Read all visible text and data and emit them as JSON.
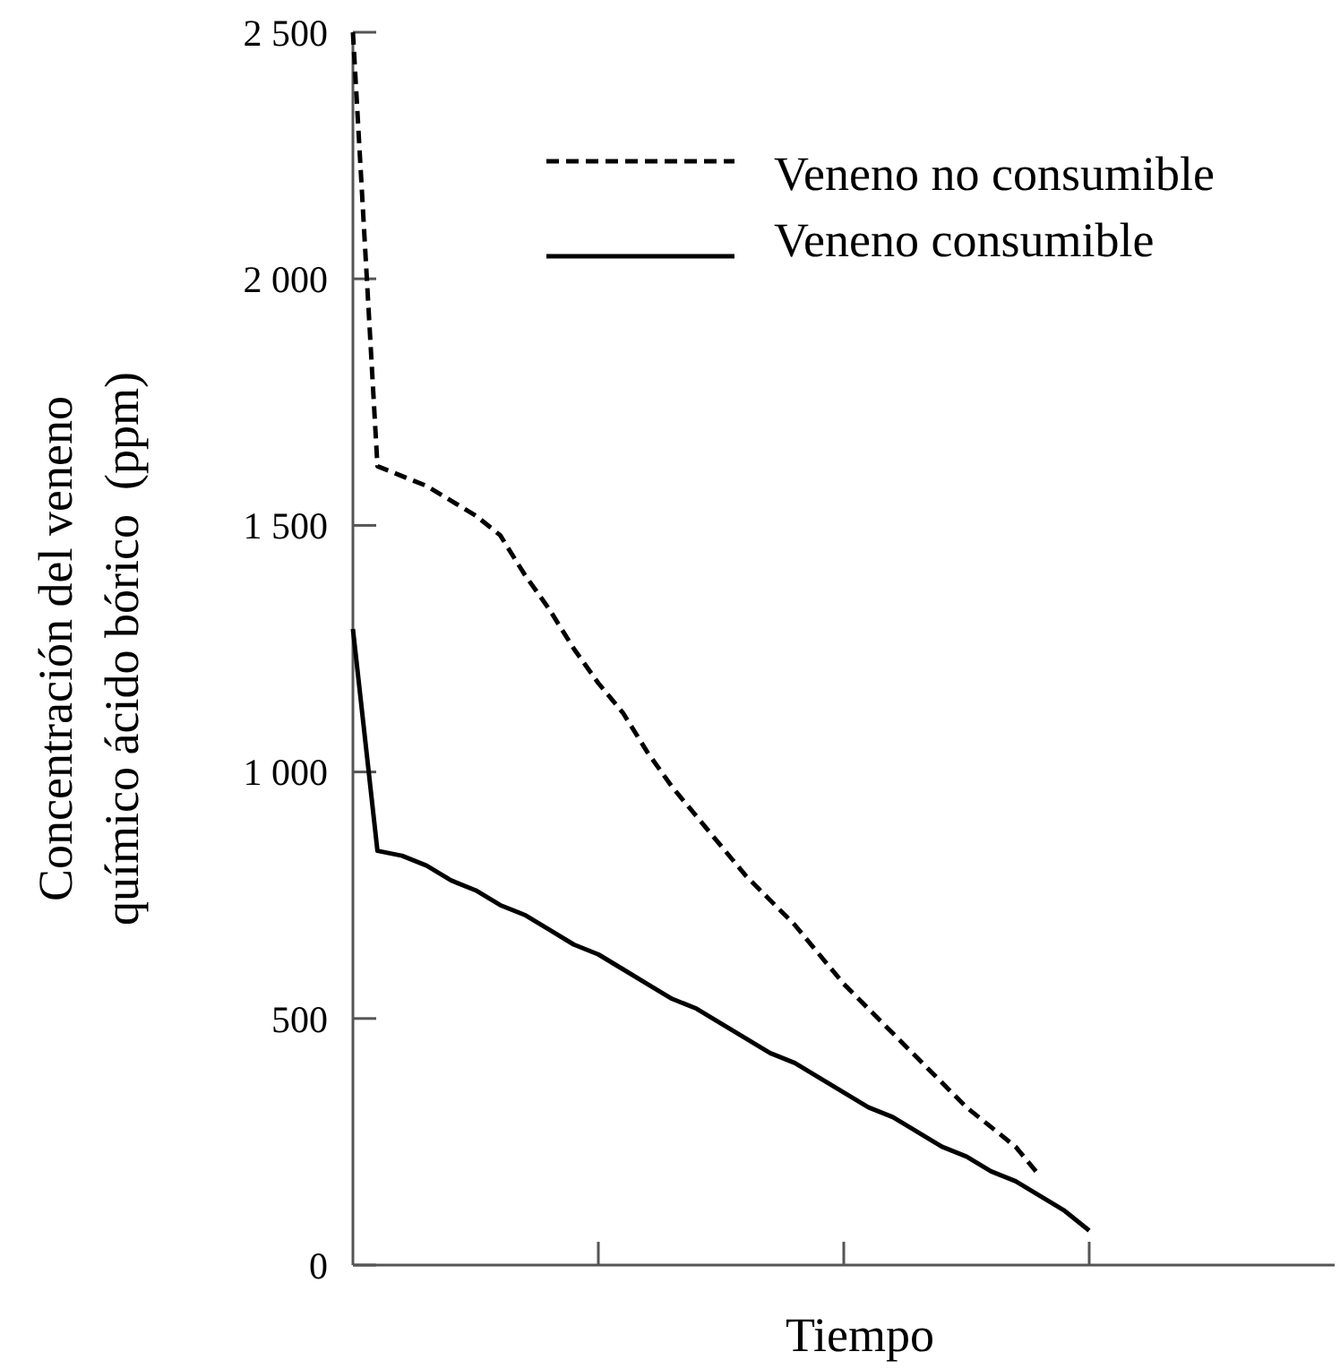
{
  "chart_data": {
    "type": "line",
    "xlabel": "Tiempo",
    "ylabel": "Concentración del veneno\nquímico ácido bórico  (ppm)",
    "categories": [
      null,
      null,
      null,
      null,
      null,
      null,
      null,
      null,
      null,
      null,
      null,
      null,
      null,
      null,
      null,
      null,
      null,
      null,
      null,
      null,
      null,
      null,
      null,
      null,
      null,
      null,
      null,
      null,
      null,
      null,
      null,
      null,
      null,
      null,
      null,
      null,
      null,
      null,
      null,
      null
    ],
    "ylim": [
      0,
      2500
    ],
    "yticks": [
      0,
      500,
      {
        "value": 1000,
        "label": "1 000"
      },
      {
        "value": 1500,
        "label": "1 500"
      },
      {
        "value": 2000,
        "label": "2 000"
      },
      {
        "value": 2500,
        "label": "2 500"
      }
    ],
    "legend": "top right",
    "marker": "none",
    "series": [
      {
        "name": "Veneno no consumible",
        "color": "#000000",
        "line_style": "dashed",
        "values": [
          2500,
          1620,
          1600,
          1580,
          1550,
          1520,
          1480,
          1400,
          1330,
          1250,
          1180,
          1120,
          1040,
          970,
          910,
          850,
          790,
          740,
          690,
          630,
          570,
          520,
          470,
          420,
          370,
          320,
          280,
          240,
          180,
          null,
          null,
          null,
          null,
          null,
          null,
          null,
          null,
          null,
          null,
          null
        ]
      },
      {
        "name": "Veneno consumible",
        "color": "#000000",
        "line_style": "solid",
        "values": [
          1290,
          840,
          830,
          810,
          780,
          760,
          730,
          710,
          680,
          650,
          630,
          600,
          570,
          540,
          520,
          490,
          460,
          430,
          410,
          380,
          350,
          320,
          300,
          270,
          240,
          220,
          190,
          170,
          140,
          110,
          70,
          null,
          null,
          null,
          null,
          null,
          null,
          null,
          null,
          null
        ]
      }
    ]
  }
}
